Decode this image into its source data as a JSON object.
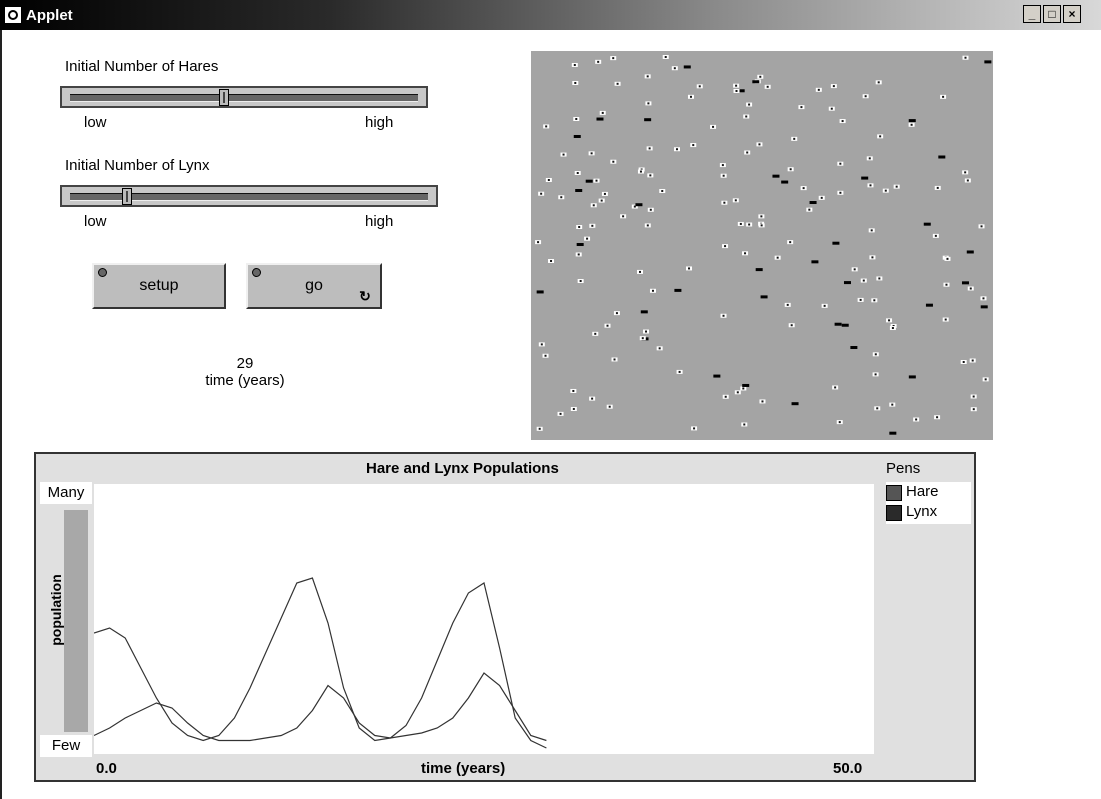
{
  "window": {
    "title": "Applet",
    "min": "_",
    "max": "□",
    "close": "×"
  },
  "hares_slider": {
    "label": "Initial Number of Hares",
    "low": "low",
    "high": "high",
    "value_fraction": 0.44
  },
  "lynx_slider": {
    "label": "Initial Number of Lynx",
    "low": "low",
    "high": "high",
    "value_fraction": 0.15
  },
  "buttons": {
    "setup": "setup",
    "go": "go"
  },
  "monitor": {
    "value": "29",
    "label": "time (years)"
  },
  "plot": {
    "title": "Hare and Lynx Populations",
    "pens_title": "Pens",
    "pens": [
      {
        "name": "Hare",
        "color": "#555555"
      },
      {
        "name": "Lynx",
        "color": "#2a2a2a"
      }
    ],
    "y_top": "Many",
    "y_bottom": "Few",
    "y_axis": "population",
    "x_axis": "time (years)",
    "x_min": "0.0",
    "x_max": "50.0"
  },
  "chart_data": {
    "type": "line",
    "title": "Hare and Lynx Populations",
    "xlabel": "time (years)",
    "ylabel": "population",
    "xlim": [
      0,
      50
    ],
    "legend": "right",
    "series": [
      {
        "name": "Hare",
        "x": [
          0,
          1,
          2,
          3,
          4,
          5,
          6,
          7,
          8,
          9,
          10,
          11,
          12,
          13,
          14,
          15,
          16,
          17,
          18,
          19,
          20,
          21,
          22,
          23,
          24,
          25,
          26,
          27,
          28,
          29
        ],
        "y": [
          0.46,
          0.48,
          0.44,
          0.32,
          0.2,
          0.1,
          0.05,
          0.03,
          0.05,
          0.12,
          0.24,
          0.38,
          0.52,
          0.66,
          0.68,
          0.5,
          0.24,
          0.08,
          0.03,
          0.04,
          0.09,
          0.2,
          0.35,
          0.5,
          0.62,
          0.66,
          0.4,
          0.12,
          0.03,
          0.0
        ]
      },
      {
        "name": "Lynx",
        "x": [
          0,
          1,
          2,
          3,
          4,
          5,
          6,
          7,
          8,
          9,
          10,
          11,
          12,
          13,
          14,
          15,
          16,
          17,
          18,
          19,
          20,
          21,
          22,
          23,
          24,
          25,
          26,
          27,
          28,
          29
        ],
        "y": [
          0.05,
          0.08,
          0.12,
          0.15,
          0.18,
          0.16,
          0.1,
          0.05,
          0.03,
          0.03,
          0.03,
          0.04,
          0.05,
          0.08,
          0.15,
          0.25,
          0.2,
          0.1,
          0.05,
          0.04,
          0.05,
          0.06,
          0.08,
          0.12,
          0.2,
          0.3,
          0.25,
          0.15,
          0.05,
          0.03
        ]
      }
    ]
  }
}
